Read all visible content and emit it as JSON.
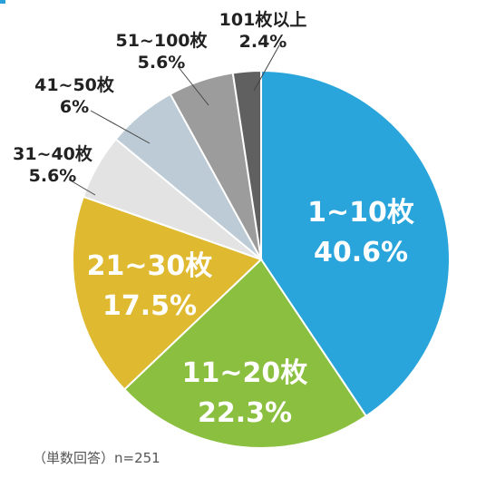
{
  "chart_data": {
    "type": "pie",
    "slices": [
      {
        "label": "1~10枚",
        "value": 40.6,
        "value_label": "40.6%",
        "color": "#29a5dc"
      },
      {
        "label": "11~20枚",
        "value": 22.3,
        "value_label": "22.3%",
        "color": "#8bbf3f"
      },
      {
        "label": "21~30枚",
        "value": 17.5,
        "value_label": "17.5%",
        "color": "#dfb92f"
      },
      {
        "label": "31~40枚",
        "value": 5.6,
        "value_label": "5.6%",
        "color": "#e3e3e3"
      },
      {
        "label": "41~50枚",
        "value": 6,
        "value_label": "6%",
        "color": "#bccbd5"
      },
      {
        "label": "51~100枚",
        "value": 5.6,
        "value_label": "5.6%",
        "color": "#9c9c9c"
      },
      {
        "label": "101枚以上",
        "value": 2.4,
        "value_label": "2.4%",
        "color": "#606060"
      }
    ],
    "footnote": "（単数回答）n=251"
  }
}
